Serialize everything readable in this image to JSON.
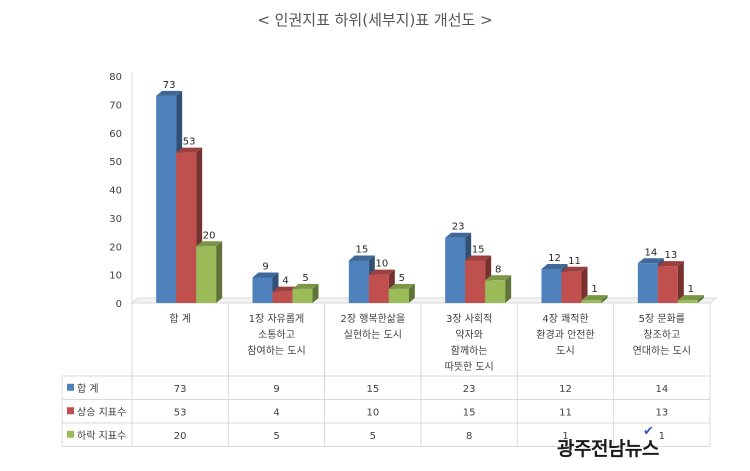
{
  "chart_data": {
    "type": "bar",
    "title": "< 인권지표 하위(세부지)표 개선도 >",
    "categories": [
      [
        "합   계"
      ],
      [
        "1장 자유롭게",
        "소통하고",
        "참여하는 도시"
      ],
      [
        "2장 행복한삶을",
        "실현하는 도시"
      ],
      [
        "3장 사회적",
        "약자와",
        "함께하는",
        "따뜻한 도시"
      ],
      [
        "4장 쾌적한",
        "환경과 안전한",
        "도시"
      ],
      [
        "5장 문화를",
        "창조하고",
        "연대하는 도시"
      ]
    ],
    "series": [
      {
        "name": "합   계",
        "color": "#4f81bd",
        "values": [
          73,
          9,
          15,
          23,
          12,
          14
        ]
      },
      {
        "name": "상승 지표수",
        "color": "#c0504d",
        "values": [
          53,
          4,
          10,
          15,
          11,
          13
        ]
      },
      {
        "name": "하락 지표수",
        "color": "#9bbb59",
        "values": [
          20,
          5,
          5,
          8,
          1,
          1
        ]
      }
    ],
    "ylim": [
      0,
      80
    ],
    "yticks": [
      0,
      10,
      20,
      30,
      40,
      50,
      60,
      70,
      80
    ],
    "grid": false,
    "legend": "data-table"
  },
  "watermark": {
    "text": "광주전남뉴스",
    "check": "✔"
  }
}
